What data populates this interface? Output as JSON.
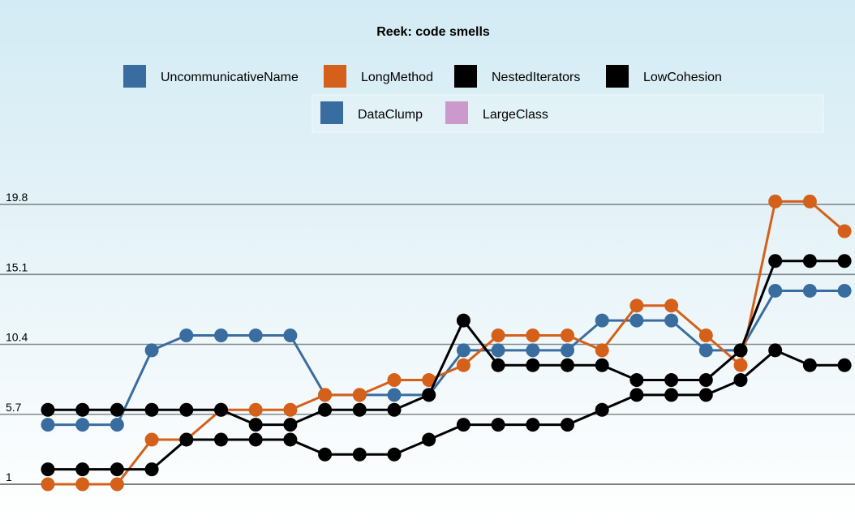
{
  "chart_data": {
    "type": "line",
    "title": "Reek: code smells",
    "xlabel": "",
    "ylabel": "",
    "yticks": [
      "1",
      "5.7",
      "10.4",
      "15.1",
      "19.8"
    ],
    "ylim": [
      1,
      21
    ],
    "legend_position": "top",
    "grid": true,
    "point_count": 24,
    "series": [
      {
        "name": "UncommunicativeName",
        "color": "#3a6d9f",
        "values": [
          5,
          5,
          5,
          10,
          11,
          11,
          11,
          11,
          7,
          7,
          7,
          7,
          10,
          10,
          10,
          10,
          12,
          12,
          12,
          10,
          10,
          14,
          14,
          14
        ]
      },
      {
        "name": "LongMethod",
        "color": "#d4601a",
        "values": [
          1,
          1,
          1,
          4,
          4,
          6,
          6,
          6,
          7,
          7,
          8,
          8,
          9,
          11,
          11,
          11,
          10,
          13,
          13,
          11,
          9,
          20,
          20,
          18
        ]
      },
      {
        "name": "NestedIterators",
        "color": "#000000",
        "values": [
          6,
          6,
          6,
          6,
          6,
          6,
          5,
          5,
          6,
          6,
          6,
          7,
          12,
          9,
          9,
          9,
          9,
          8,
          8,
          8,
          10,
          16,
          16,
          16
        ]
      },
      {
        "name": "LowCohesion",
        "color": "#000000",
        "values": [
          2,
          2,
          2,
          2,
          4,
          4,
          4,
          4,
          3,
          3,
          3,
          4,
          5,
          5,
          5,
          5,
          6,
          7,
          7,
          7,
          8,
          10,
          9,
          9
        ]
      },
      {
        "name": "DataClump",
        "color": "#3a6d9f",
        "values": []
      },
      {
        "name": "LargeClass",
        "color": "#cc99cc",
        "values": []
      }
    ]
  }
}
